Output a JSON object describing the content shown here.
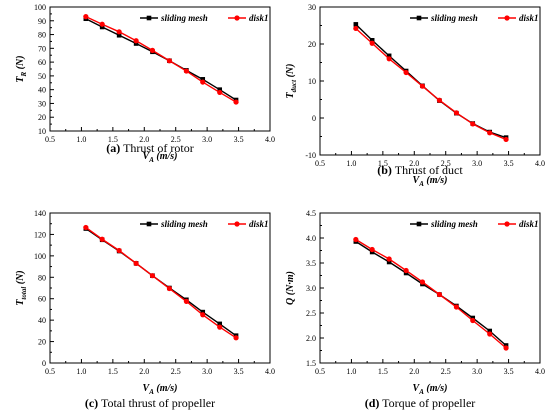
{
  "chart_data": [
    {
      "type": "line",
      "panel_letter": "(a)",
      "caption": "Thrust of rotor",
      "xlabel_main": "V",
      "xlabel_sub": "A",
      "xlabel_unit": " (m/s)",
      "ylabel_main": "T",
      "ylabel_sub": "R",
      "ylabel_unit": " (N)",
      "xlim": [
        0.5,
        4.0
      ],
      "ylim": [
        10,
        100
      ],
      "x_ticks": [
        "0.5",
        "1.0",
        "1.5",
        "2.0",
        "2.5",
        "3.0",
        "3.5",
        "4.0"
      ],
      "y_ticks": [
        "10",
        "20",
        "30",
        "40",
        "50",
        "60",
        "70",
        "80",
        "90",
        "100"
      ],
      "legend_position": "top-right",
      "series": [
        {
          "name": "sliding mesh",
          "color": "#000000",
          "marker": "square",
          "x": [
            1.07,
            1.33,
            1.6,
            1.87,
            2.13,
            2.4,
            2.67,
            2.93,
            3.2,
            3.46
          ],
          "y": [
            91.5,
            85.5,
            79.5,
            73.5,
            67.5,
            61,
            54,
            47.5,
            40,
            32.5
          ]
        },
        {
          "name": "disk1",
          "color": "#ff0000",
          "marker": "circle",
          "x": [
            1.07,
            1.33,
            1.6,
            1.87,
            2.13,
            2.4,
            2.67,
            2.93,
            3.2,
            3.46
          ],
          "y": [
            93,
            87.5,
            82,
            75.5,
            68.5,
            61,
            53.5,
            45.5,
            38,
            31
          ]
        }
      ]
    },
    {
      "type": "line",
      "panel_letter": "(b)",
      "caption": "Thrust of duct",
      "xlabel_main": "V",
      "xlabel_sub": "A",
      "xlabel_unit": " (m/s)",
      "ylabel_main": "T",
      "ylabel_sub": "duct",
      "ylabel_unit": " (N)",
      "xlim": [
        0.5,
        4.0
      ],
      "ylim": [
        -10,
        30
      ],
      "x_ticks": [
        "0.5",
        "1.0",
        "1.5",
        "2.0",
        "2.5",
        "3.0",
        "3.5",
        "4.0"
      ],
      "y_ticks": [
        "-10",
        "0",
        "10",
        "20",
        "30"
      ],
      "legend_position": "top-right",
      "series": [
        {
          "name": "sliding mesh",
          "color": "#000000",
          "marker": "square",
          "x": [
            1.07,
            1.33,
            1.6,
            1.87,
            2.13,
            2.4,
            2.67,
            2.93,
            3.2,
            3.46
          ],
          "y": [
            25.3,
            21,
            16.8,
            12.7,
            8.7,
            4.7,
            1.3,
            -1.5,
            -3.8,
            -5.3
          ]
        },
        {
          "name": "disk1",
          "color": "#ff0000",
          "marker": "circle",
          "x": [
            1.07,
            1.33,
            1.6,
            1.87,
            2.13,
            2.4,
            2.67,
            2.93,
            3.2,
            3.46
          ],
          "y": [
            24.2,
            20.2,
            16,
            12.3,
            8.6,
            4.8,
            1.4,
            -1.6,
            -4,
            -5.8
          ]
        }
      ]
    },
    {
      "type": "line",
      "panel_letter": "(c)",
      "caption": "Total thrust of propeller",
      "xlabel_main": "V",
      "xlabel_sub": "A",
      "xlabel_unit": " (m/s)",
      "ylabel_main": "T",
      "ylabel_sub": "total",
      "ylabel_unit": " (N)",
      "xlim": [
        0.5,
        4.0
      ],
      "ylim": [
        0,
        140
      ],
      "x_ticks": [
        "0.5",
        "1.0",
        "1.5",
        "2.0",
        "2.5",
        "3.0",
        "3.5",
        "4.0"
      ],
      "y_ticks": [
        "0",
        "20",
        "40",
        "60",
        "80",
        "100",
        "120",
        "140"
      ],
      "legend_position": "top-right",
      "series": [
        {
          "name": "sliding mesh",
          "color": "#000000",
          "marker": "square",
          "x": [
            1.07,
            1.33,
            1.6,
            1.87,
            2.13,
            2.4,
            2.67,
            2.93,
            3.2,
            3.46
          ],
          "y": [
            125.5,
            115,
            104.5,
            93,
            81.5,
            70,
            59,
            47.5,
            36.5,
            25.5
          ]
        },
        {
          "name": "disk1",
          "color": "#ff0000",
          "marker": "circle",
          "x": [
            1.07,
            1.33,
            1.6,
            1.87,
            2.13,
            2.4,
            2.67,
            2.93,
            3.2,
            3.46
          ],
          "y": [
            126.5,
            115.5,
            105,
            93,
            81.5,
            69.5,
            57.5,
            45,
            33.5,
            23.5
          ]
        }
      ]
    },
    {
      "type": "line",
      "panel_letter": "(d)",
      "caption": "Torque of propeller",
      "xlabel_main": "V",
      "xlabel_sub": "A",
      "xlabel_unit": " (m/s)",
      "ylabel_main": "Q",
      "ylabel_sub": "",
      "ylabel_unit": " (N·m)",
      "xlim": [
        0.5,
        4.0
      ],
      "ylim": [
        1.5,
        4.5
      ],
      "x_ticks": [
        "0.5",
        "1.0",
        "1.5",
        "2.0",
        "2.5",
        "3.0",
        "3.5",
        "4.0"
      ],
      "y_ticks": [
        "1.5",
        "2.0",
        "2.5",
        "3.0",
        "3.5",
        "4.0",
        "4.5"
      ],
      "legend_position": "top-right",
      "series": [
        {
          "name": "sliding mesh",
          "color": "#000000",
          "marker": "square",
          "x": [
            1.07,
            1.33,
            1.6,
            1.87,
            2.13,
            2.4,
            2.67,
            2.93,
            3.2,
            3.46
          ],
          "y": [
            3.93,
            3.72,
            3.52,
            3.3,
            3.08,
            2.87,
            2.64,
            2.4,
            2.14,
            1.85
          ]
        },
        {
          "name": "disk1",
          "color": "#ff0000",
          "marker": "circle",
          "x": [
            1.07,
            1.33,
            1.6,
            1.87,
            2.13,
            2.4,
            2.67,
            2.93,
            3.2,
            3.46
          ],
          "y": [
            3.97,
            3.77,
            3.58,
            3.35,
            3.12,
            2.87,
            2.62,
            2.35,
            2.08,
            1.8
          ]
        }
      ]
    }
  ]
}
